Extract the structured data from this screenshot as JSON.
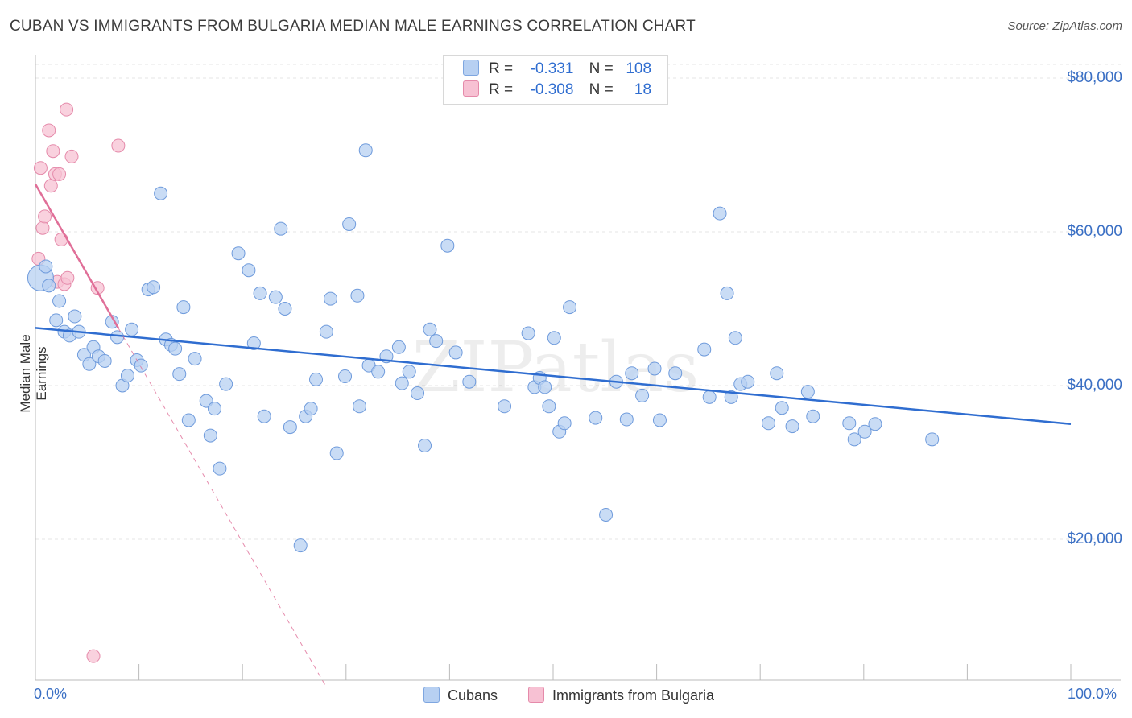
{
  "title": "CUBAN VS IMMIGRANTS FROM BULGARIA MEDIAN MALE EARNINGS CORRELATION CHART",
  "source": "Source: ZipAtlas.com",
  "watermark": "ZIPatlas",
  "colors": {
    "blue": "#2f6dd0",
    "blue_fill": "#b7d0f2",
    "pink": "#e06f98",
    "pink_fill": "#f7c1d3",
    "grid": "#e4e4e4",
    "axis_text": "#3a6fc4"
  },
  "legend": {
    "rows": [
      {
        "r_label": "R =",
        "r_value": "-0.331",
        "n_label": "N =",
        "n_value": "108"
      },
      {
        "r_label": "R =",
        "r_value": "-0.308",
        "n_label": "N =",
        "n_value": "18"
      }
    ]
  },
  "bottom_legend": {
    "series1": "Cubans",
    "series2": "Immigrants from Bulgaria"
  },
  "axes": {
    "ylabel": "Median Male Earnings",
    "xmin_label": "0.0%",
    "xmax_label": "100.0%",
    "yticks": [
      "$80,000",
      "$60,000",
      "$40,000",
      "$20,000"
    ]
  },
  "chart_data": {
    "type": "scatter",
    "title": "CUBAN VS IMMIGRANTS FROM BULGARIA MEDIAN MALE EARNINGS CORRELATION CHART",
    "xlabel": "",
    "ylabel": "Median Male Earnings",
    "xlim": [
      0,
      100
    ],
    "ylim": [
      0,
      83000
    ],
    "yticks": [
      20000,
      40000,
      60000,
      80000
    ],
    "series": [
      {
        "name": "Cubans",
        "r": -0.331,
        "n": 108,
        "trend": {
          "x": [
            0,
            100
          ],
          "y": [
            47500,
            35000
          ]
        },
        "points": [
          [
            0.5,
            54000
          ],
          [
            1,
            55500
          ],
          [
            1.3,
            53000
          ],
          [
            2,
            48500
          ],
          [
            2.3,
            51000
          ],
          [
            2.8,
            47000
          ],
          [
            3.3,
            46500
          ],
          [
            3.8,
            49000
          ],
          [
            4.2,
            47000
          ],
          [
            4.7,
            44000
          ],
          [
            5.2,
            42800
          ],
          [
            5.6,
            45000
          ],
          [
            6.1,
            43800
          ],
          [
            6.7,
            43200
          ],
          [
            7.4,
            48300
          ],
          [
            7.9,
            46300
          ],
          [
            8.4,
            40000
          ],
          [
            8.9,
            41300
          ],
          [
            9.3,
            47300
          ],
          [
            9.8,
            43300
          ],
          [
            10.2,
            42600
          ],
          [
            10.9,
            52500
          ],
          [
            11.4,
            52800
          ],
          [
            12.1,
            65000
          ],
          [
            12.6,
            46000
          ],
          [
            13.1,
            45300
          ],
          [
            13.5,
            44800
          ],
          [
            13.9,
            41500
          ],
          [
            14.3,
            50200
          ],
          [
            14.8,
            35500
          ],
          [
            15.4,
            43500
          ],
          [
            16.5,
            38000
          ],
          [
            16.9,
            33500
          ],
          [
            17.3,
            37000
          ],
          [
            17.8,
            29200
          ],
          [
            18.4,
            40200
          ],
          [
            19.6,
            57200
          ],
          [
            20.6,
            55000
          ],
          [
            21.1,
            45500
          ],
          [
            21.7,
            52000
          ],
          [
            22.1,
            36000
          ],
          [
            23.2,
            51500
          ],
          [
            23.7,
            60400
          ],
          [
            24.1,
            50000
          ],
          [
            24.6,
            34600
          ],
          [
            25.6,
            19200
          ],
          [
            26.1,
            36000
          ],
          [
            26.6,
            37000
          ],
          [
            27.1,
            40800
          ],
          [
            28.1,
            47000
          ],
          [
            28.5,
            51300
          ],
          [
            29.1,
            31200
          ],
          [
            29.9,
            41200
          ],
          [
            30.3,
            61000
          ],
          [
            31.1,
            51700
          ],
          [
            31.3,
            37300
          ],
          [
            31.9,
            70600
          ],
          [
            32.2,
            42600
          ],
          [
            33.1,
            41800
          ],
          [
            33.9,
            43800
          ],
          [
            35.1,
            45000
          ],
          [
            35.4,
            40300
          ],
          [
            36.1,
            41800
          ],
          [
            36.9,
            39000
          ],
          [
            37.6,
            32200
          ],
          [
            38.1,
            47300
          ],
          [
            38.7,
            45800
          ],
          [
            39.8,
            58200
          ],
          [
            40.6,
            44300
          ],
          [
            41.9,
            40500
          ],
          [
            45.3,
            37300
          ],
          [
            47.6,
            46800
          ],
          [
            48.2,
            39800
          ],
          [
            48.7,
            41000
          ],
          [
            49.2,
            39800
          ],
          [
            49.6,
            37300
          ],
          [
            50.1,
            46200
          ],
          [
            50.6,
            34000
          ],
          [
            51.1,
            35100
          ],
          [
            51.6,
            50200
          ],
          [
            54.1,
            35800
          ],
          [
            55.1,
            23200
          ],
          [
            56.1,
            40500
          ],
          [
            57.1,
            35600
          ],
          [
            57.6,
            41600
          ],
          [
            58.6,
            38700
          ],
          [
            59.8,
            42200
          ],
          [
            60.3,
            35500
          ],
          [
            61.8,
            41600
          ],
          [
            64.6,
            44700
          ],
          [
            65.1,
            38500
          ],
          [
            66.1,
            62400
          ],
          [
            66.8,
            52000
          ],
          [
            67.2,
            38500
          ],
          [
            67.6,
            46200
          ],
          [
            68.1,
            40200
          ],
          [
            68.8,
            40500
          ],
          [
            70.8,
            35100
          ],
          [
            71.6,
            41600
          ],
          [
            72.1,
            37100
          ],
          [
            73.1,
            34700
          ],
          [
            74.6,
            39200
          ],
          [
            75.1,
            36000
          ],
          [
            78.6,
            35100
          ],
          [
            79.1,
            33000
          ],
          [
            80.1,
            34000
          ],
          [
            81.1,
            35000
          ],
          [
            86.6,
            33000
          ]
        ]
      },
      {
        "name": "Immigrants from Bulgaria",
        "r": -0.308,
        "n": 18,
        "trend": {
          "x": [
            0,
            8
          ],
          "y": [
            66200,
            47500
          ]
        },
        "trend_extension": {
          "x": [
            8,
            28
          ],
          "y": [
            47500,
            1000
          ]
        },
        "points": [
          [
            0.3,
            56500
          ],
          [
            0.5,
            68300
          ],
          [
            0.7,
            60500
          ],
          [
            0.9,
            62000
          ],
          [
            1.3,
            73200
          ],
          [
            1.5,
            66000
          ],
          [
            1.7,
            70500
          ],
          [
            1.9,
            67500
          ],
          [
            2.1,
            53500
          ],
          [
            2.3,
            67500
          ],
          [
            2.5,
            59000
          ],
          [
            2.8,
            53200
          ],
          [
            3.1,
            54000
          ],
          [
            3.5,
            69800
          ],
          [
            5.6,
            4800
          ],
          [
            6.0,
            52700
          ],
          [
            3.0,
            75900
          ],
          [
            8.0,
            71200
          ]
        ]
      }
    ]
  }
}
